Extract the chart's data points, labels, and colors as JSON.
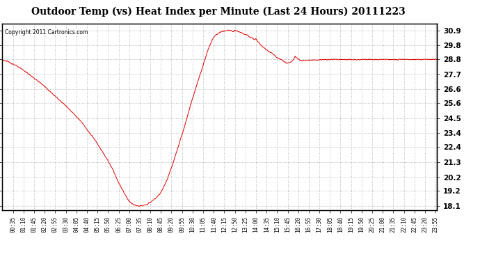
{
  "title": "Outdoor Temp (vs) Heat Index per Minute (Last 24 Hours) 20111223",
  "copyright": "Copyright 2011 Cartronics.com",
  "line_color": "#dd0000",
  "background_color": "#ffffff",
  "plot_bg_color": "#ffffff",
  "grid_color": "#aaaaaa",
  "ylim": [
    17.8,
    31.4
  ],
  "yticks": [
    18.1,
    19.2,
    20.2,
    21.3,
    22.4,
    23.4,
    24.5,
    25.6,
    26.6,
    27.7,
    28.8,
    29.8,
    30.9
  ],
  "xlabel_fontsize": 5.5,
  "ylabel_fontsize": 7.5,
  "title_fontsize": 10,
  "x_labels": [
    "00:35",
    "01:10",
    "01:45",
    "02:20",
    "02:55",
    "03:30",
    "04:05",
    "04:40",
    "05:15",
    "05:50",
    "06:25",
    "07:00",
    "07:35",
    "08:10",
    "08:45",
    "09:20",
    "09:55",
    "10:30",
    "11:05",
    "11:40",
    "12:15",
    "12:50",
    "13:25",
    "14:00",
    "14:35",
    "15:10",
    "15:45",
    "16:20",
    "16:55",
    "17:30",
    "18:05",
    "18:40",
    "19:15",
    "19:50",
    "20:25",
    "21:00",
    "21:35",
    "22:10",
    "22:45",
    "23:20",
    "23:55"
  ],
  "waypoints": [
    [
      0,
      28.75
    ],
    [
      20,
      28.6
    ],
    [
      40,
      28.4
    ],
    [
      70,
      28.0
    ],
    [
      100,
      27.5
    ],
    [
      130,
      27.0
    ],
    [
      160,
      26.4
    ],
    [
      190,
      25.8
    ],
    [
      220,
      25.2
    ],
    [
      250,
      24.5
    ],
    [
      270,
      24.0
    ],
    [
      290,
      23.4
    ],
    [
      310,
      22.8
    ],
    [
      330,
      22.1
    ],
    [
      350,
      21.4
    ],
    [
      365,
      20.8
    ],
    [
      375,
      20.3
    ],
    [
      385,
      19.8
    ],
    [
      395,
      19.4
    ],
    [
      405,
      19.0
    ],
    [
      415,
      18.6
    ],
    [
      425,
      18.35
    ],
    [
      435,
      18.18
    ],
    [
      445,
      18.12
    ],
    [
      455,
      18.1
    ],
    [
      465,
      18.12
    ],
    [
      475,
      18.18
    ],
    [
      485,
      18.3
    ],
    [
      495,
      18.45
    ],
    [
      510,
      18.7
    ],
    [
      525,
      19.1
    ],
    [
      535,
      19.5
    ],
    [
      545,
      20.0
    ],
    [
      555,
      20.6
    ],
    [
      565,
      21.2
    ],
    [
      575,
      21.9
    ],
    [
      585,
      22.6
    ],
    [
      595,
      23.3
    ],
    [
      605,
      24.0
    ],
    [
      615,
      24.8
    ],
    [
      625,
      25.6
    ],
    [
      635,
      26.3
    ],
    [
      645,
      27.0
    ],
    [
      655,
      27.7
    ],
    [
      663,
      28.2
    ],
    [
      670,
      28.7
    ],
    [
      677,
      29.2
    ],
    [
      683,
      29.6
    ],
    [
      689,
      29.9
    ],
    [
      695,
      30.2
    ],
    [
      702,
      30.45
    ],
    [
      710,
      30.6
    ],
    [
      718,
      30.72
    ],
    [
      726,
      30.8
    ],
    [
      734,
      30.85
    ],
    [
      742,
      30.88
    ],
    [
      750,
      30.9
    ],
    [
      755,
      30.9
    ],
    [
      760,
      30.88
    ],
    [
      765,
      30.86
    ],
    [
      770,
      30.9
    ],
    [
      775,
      30.87
    ],
    [
      780,
      30.84
    ],
    [
      785,
      30.8
    ],
    [
      790,
      30.75
    ],
    [
      800,
      30.65
    ],
    [
      810,
      30.55
    ],
    [
      820,
      30.42
    ],
    [
      830,
      30.32
    ],
    [
      835,
      30.2
    ],
    [
      840,
      30.3
    ],
    [
      845,
      30.1
    ],
    [
      850,
      30.0
    ],
    [
      858,
      29.8
    ],
    [
      868,
      29.6
    ],
    [
      880,
      29.4
    ],
    [
      895,
      29.2
    ],
    [
      905,
      29.0
    ],
    [
      915,
      28.85
    ],
    [
      925,
      28.75
    ],
    [
      935,
      28.6
    ],
    [
      945,
      28.5
    ],
    [
      955,
      28.6
    ],
    [
      963,
      28.75
    ],
    [
      970,
      29.0
    ],
    [
      975,
      28.9
    ],
    [
      982,
      28.78
    ],
    [
      990,
      28.72
    ],
    [
      1000,
      28.7
    ],
    [
      1015,
      28.72
    ],
    [
      1030,
      28.73
    ],
    [
      1045,
      28.75
    ],
    [
      1060,
      28.76
    ],
    [
      1080,
      28.77
    ],
    [
      1100,
      28.78
    ],
    [
      1120,
      28.78
    ],
    [
      1140,
      28.77
    ],
    [
      1160,
      28.76
    ],
    [
      1180,
      28.77
    ],
    [
      1200,
      28.78
    ],
    [
      1220,
      28.78
    ],
    [
      1240,
      28.77
    ],
    [
      1260,
      28.78
    ],
    [
      1280,
      28.78
    ],
    [
      1300,
      28.77
    ],
    [
      1320,
      28.78
    ],
    [
      1340,
      28.78
    ],
    [
      1360,
      28.78
    ],
    [
      1380,
      28.78
    ],
    [
      1400,
      28.78
    ],
    [
      1420,
      28.78
    ],
    [
      1439,
      28.78
    ]
  ]
}
